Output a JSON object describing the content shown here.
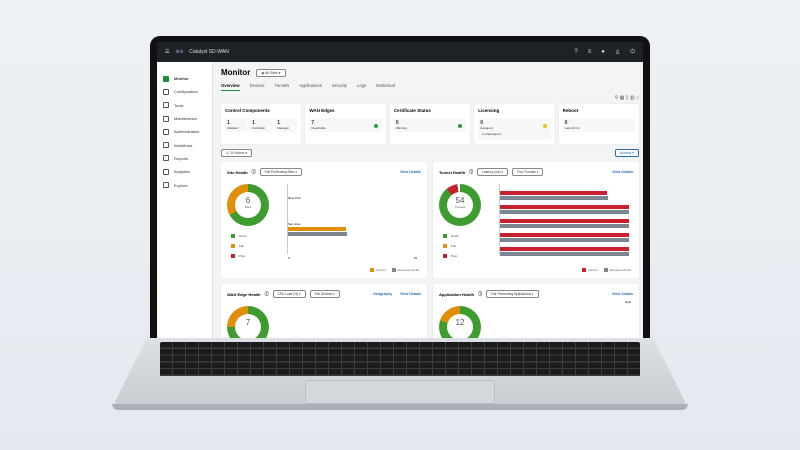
{
  "app": {
    "title": "Catalyst SD-WAN",
    "brand": "cisco"
  },
  "sidebar": {
    "items": [
      {
        "label": "Monitor",
        "active": true
      },
      {
        "label": "Configuration"
      },
      {
        "label": "Tools"
      },
      {
        "label": "Maintenance"
      },
      {
        "label": "Administration"
      },
      {
        "label": "Workflows"
      },
      {
        "label": "Reports"
      },
      {
        "label": "Analytics"
      },
      {
        "label": "Explore"
      }
    ]
  },
  "header": {
    "title": "Monitor",
    "site_selector": "All Sites"
  },
  "tabs": [
    "Overview",
    "Devices",
    "Tunnels",
    "Applications",
    "Security",
    "Logs",
    "Multicloud"
  ],
  "cards": [
    {
      "title": "Control Components",
      "items": [
        {
          "value": "1",
          "label": "Validator"
        },
        {
          "value": "1",
          "label": "Controller"
        },
        {
          "value": "1",
          "label": "Manager"
        }
      ]
    },
    {
      "title": "WAN Edges",
      "items": [
        {
          "value": "7",
          "label": "Reachable",
          "status": "#2e9a3e"
        }
      ]
    },
    {
      "title": "Certificate Status",
      "items": [
        {
          "value": "0",
          "label": "Warning",
          "status": "#2e9a3e"
        }
      ]
    },
    {
      "title": "Licensing",
      "items": [
        {
          "value": "0",
          "label": "Assigned",
          "extra": "0 Unassigned",
          "status": "#e8c21a"
        }
      ]
    },
    {
      "title": "Reboot",
      "items": [
        {
          "value": "0",
          "label": "Last 24 hrs"
        }
      ]
    }
  ],
  "time_filter": "24 Hours",
  "actions_label": "Actions",
  "colors": {
    "good": "#3d9b2f",
    "fair": "#e08e0b",
    "poor": "#c8202e",
    "previous": "#7c8590",
    "link": "#2a6ebb"
  },
  "site_health": {
    "title": "Site Health",
    "filter": "Fair Performing Sites",
    "link": "View Details",
    "total": "6",
    "unit": "Sites",
    "good_fraction": 0.67,
    "fair_fraction": 0.33,
    "legend": [
      "Good",
      "Fair",
      "Poor"
    ],
    "bar_labels": [
      "New York",
      "San Jose"
    ],
    "bars": {
      "current": 0.45,
      "previous": 0.46
    },
    "x_ticks": [
      "0",
      "10"
    ],
    "footer": [
      "Current",
      "Previous 24 Hrs"
    ]
  },
  "tunnel_health": {
    "title": "Tunnel Health",
    "filter1": "Latency (ms)",
    "filter2": "Poor Tunnels",
    "link": "View Details",
    "total": "54",
    "unit": "Tunnels",
    "good_fraction": 0.89,
    "poor_fraction": 0.09,
    "legend": [
      "Good",
      "Fair",
      "Poor"
    ],
    "bars": [
      [
        0.83,
        0.84
      ],
      [
        1,
        1
      ],
      [
        1,
        1
      ],
      [
        1,
        1
      ],
      [
        1,
        1
      ]
    ],
    "footer": [
      "Current",
      "Previous 24 Hrs"
    ]
  },
  "wan_edge_health": {
    "title": "WAN Edge Health",
    "filter1": "CPU Load (%)",
    "filter2": "Fair Devices",
    "link1": "Geography",
    "link2": "View Details",
    "total": "7"
  },
  "app_health": {
    "title": "Application Health",
    "filter": "Fair Performing Applications",
    "link": "View Details",
    "total": "12",
    "qoe": "QoE"
  }
}
